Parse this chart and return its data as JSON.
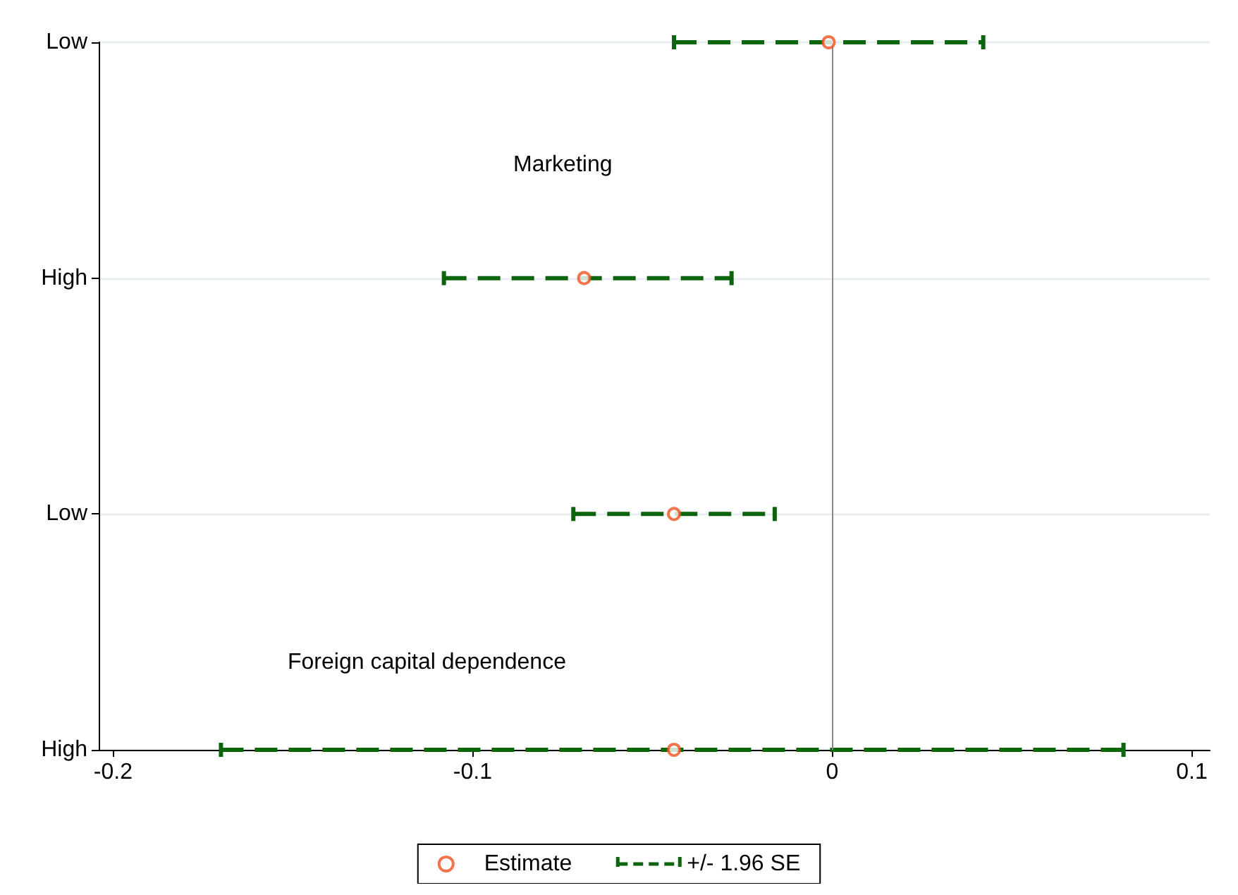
{
  "chart_data": {
    "type": "scatter",
    "orientation": "horizontal",
    "categories": [
      "Low",
      "High",
      "Low",
      "High"
    ],
    "series": [
      {
        "name": "Estimate",
        "color": "#f0501e",
        "marker": "circle",
        "values": [
          -0.001,
          -0.069,
          -0.044,
          -0.044
        ],
        "errors": [
          [
            -0.044,
            0.042
          ],
          [
            -0.108,
            -0.028
          ],
          [
            -0.072,
            -0.016
          ],
          [
            -0.17,
            0.081
          ]
        ]
      }
    ],
    "line_style": "dashed",
    "xlim": [
      -0.204,
      0.105
    ],
    "xticks": [
      -0.2,
      -0.1,
      0,
      0.1
    ],
    "grid": "y",
    "legend": "bottom",
    "ref_lines": [
      {
        "axis": "x",
        "value": 0,
        "color": "#888888"
      }
    ],
    "annotations": [
      "Marketing",
      "Foreign capital dependence",
      "+/- 1.96 SE"
    ]
  }
}
